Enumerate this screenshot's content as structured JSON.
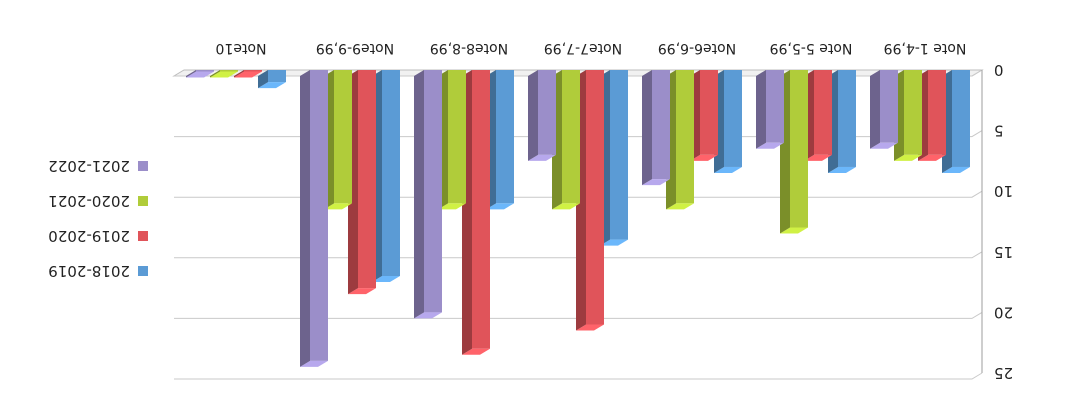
{
  "chart_data": {
    "type": "bar",
    "rendering": "3d-clustered-column",
    "orientation": "rotated-180",
    "title": "",
    "xlabel": "",
    "ylabel": "",
    "categories": [
      "Note 1-4,99",
      "Note 5-5,99",
      "Note6-6,99",
      "Note7-7,99",
      "Note8-8,99",
      "Note9-9,99",
      "Note10"
    ],
    "series": [
      {
        "name": "2018-2019",
        "color": "#5b9bd5",
        "values": [
          8,
          8,
          8,
          14,
          11,
          17,
          1
        ]
      },
      {
        "name": "2019-2020",
        "color": "#e0545a",
        "values": [
          7,
          7,
          7,
          21,
          23,
          18,
          0
        ]
      },
      {
        "name": "2020-2021",
        "color": "#b0cc3a",
        "values": [
          7,
          13,
          11,
          11,
          11,
          11,
          0
        ]
      },
      {
        "name": "2021-2022",
        "color": "#9b8ec9",
        "values": [
          6,
          6,
          9,
          7,
          20,
          24,
          0
        ]
      }
    ],
    "ylim": [
      0,
      25
    ],
    "yticks": [
      0,
      5,
      10,
      15,
      20,
      25
    ],
    "grid": true,
    "legend": "right"
  }
}
